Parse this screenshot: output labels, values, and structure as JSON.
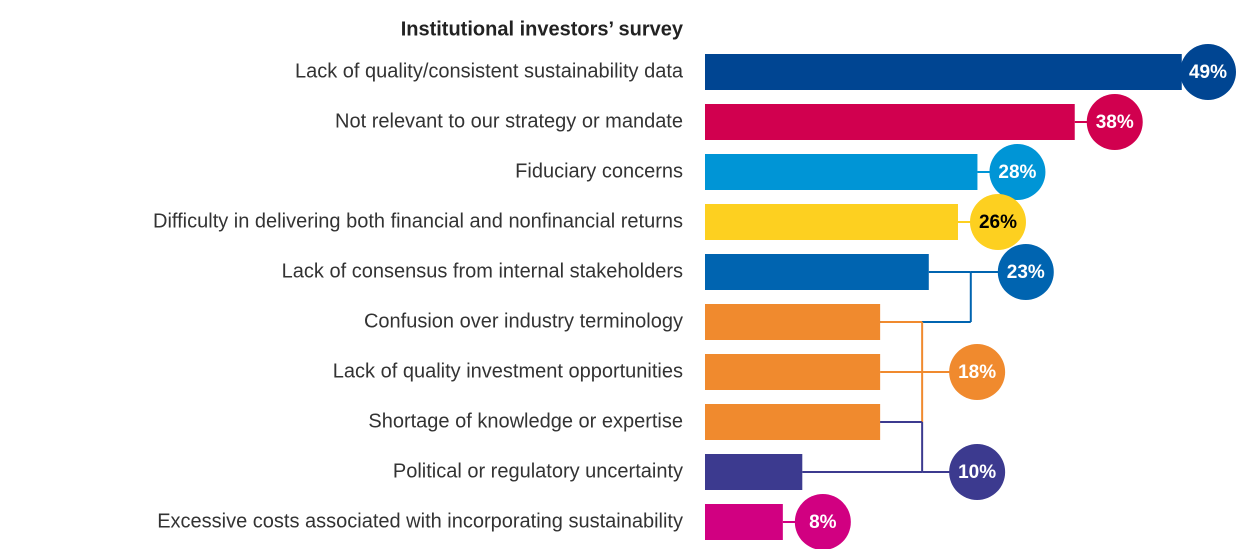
{
  "chart_data": {
    "type": "bar",
    "orientation": "horizontal",
    "title": "Institutional investors’ survey",
    "categories": [
      "Lack of quality/consistent sustainability data",
      "Not relevant to our strategy or mandate",
      "Fiduciary concerns",
      "Difficulty in delivering both financial and nonfinancial returns",
      "Lack of consensus from internal stakeholders",
      "Confusion over industry terminology",
      "Lack of quality investment opportunities",
      "Shortage of knowledge or expertise",
      "Political or regulatory uncertainty",
      "Excessive costs associated with incorporating sustainability"
    ],
    "values": [
      49,
      38,
      28,
      26,
      23,
      18,
      18,
      18,
      10,
      8
    ],
    "value_labels": [
      "49%",
      "38%",
      "28%",
      "26%",
      "23%",
      null,
      "18%",
      null,
      "10%",
      "8%"
    ],
    "colors": [
      "#004592",
      "#d1004f",
      "#0095d6",
      "#fdd020",
      "#0064b0",
      "#f08a2e",
      "#f08a2e",
      "#f08a2e",
      "#3c3a8f",
      "#d10081"
    ]
  }
}
